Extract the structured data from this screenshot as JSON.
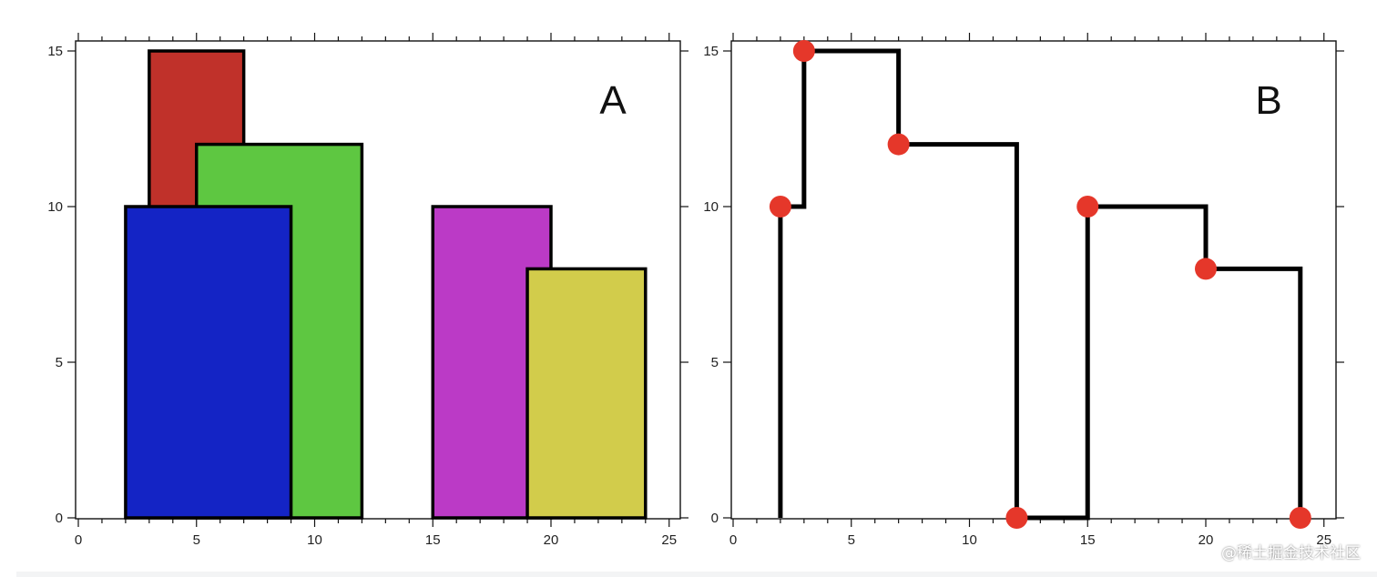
{
  "watermark": "@稀土掘金技术社区",
  "chart_data": [
    {
      "type": "bar",
      "panel_label": "A",
      "xlim": [
        0,
        25
      ],
      "ylim": [
        0,
        15
      ],
      "xticks": [
        0,
        5,
        10,
        15,
        20,
        25
      ],
      "yticks": [
        0,
        5,
        10,
        15
      ],
      "grid": false,
      "rectangles": [
        {
          "x_left": 3,
          "x_right": 7,
          "height": 15,
          "color": "#c0312a"
        },
        {
          "x_left": 5,
          "x_right": 12,
          "height": 12,
          "color": "#5ec741"
        },
        {
          "x_left": 2,
          "x_right": 9,
          "height": 10,
          "color": "#1424c5"
        },
        {
          "x_left": 15,
          "x_right": 20,
          "height": 10,
          "color": "#bb3ac6"
        },
        {
          "x_left": 19,
          "x_right": 24,
          "height": 8,
          "color": "#d2cc4b"
        }
      ]
    },
    {
      "type": "line",
      "panel_label": "B",
      "xlim": [
        0,
        25
      ],
      "ylim": [
        0,
        15
      ],
      "xticks": [
        0,
        5,
        10,
        15,
        20,
        25
      ],
      "yticks": [
        0,
        5,
        10,
        15
      ],
      "grid": false,
      "line_color": "#000000",
      "point_color": "#e5372a",
      "skyline_points": [
        [
          2,
          10
        ],
        [
          3,
          15
        ],
        [
          7,
          12
        ],
        [
          12,
          0
        ],
        [
          15,
          10
        ],
        [
          20,
          8
        ],
        [
          24,
          0
        ]
      ]
    }
  ]
}
